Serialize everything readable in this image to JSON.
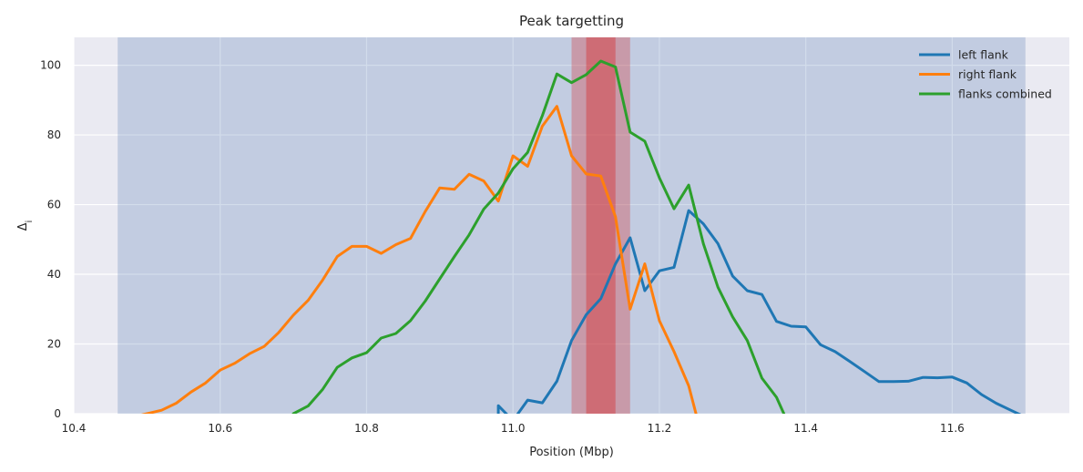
{
  "chart_data": {
    "type": "line",
    "title": "Peak targetting",
    "xlabel": "Position (Mbp)",
    "ylabel": "Δ_i",
    "xlim": [
      10.4,
      11.76
    ],
    "ylim": [
      0,
      108
    ],
    "xticks": [
      10.4,
      10.6,
      10.8,
      11.0,
      11.2,
      11.4,
      11.6
    ],
    "xtick_labels": [
      "10.4",
      "10.6",
      "10.8",
      "11.0",
      "11.2",
      "11.4",
      "11.6"
    ],
    "yticks": [
      0,
      20,
      40,
      60,
      80,
      100
    ],
    "ytick_labels": [
      "0",
      "20",
      "40",
      "60",
      "80",
      "100"
    ],
    "grid": true,
    "legend_position": "upper right",
    "background_color": "#eaeaf2",
    "shaded_regions": [
      {
        "x0": 10.46,
        "x1": 11.7,
        "color": "#4c72b0",
        "opacity": 0.25
      },
      {
        "x0": 11.08,
        "x1": 11.16,
        "color": "#d62728",
        "opacity": 0.3
      },
      {
        "x0": 11.1,
        "x1": 11.14,
        "color": "#d62728",
        "opacity": 0.4
      }
    ],
    "series": [
      {
        "name": "left flank",
        "color": "#1f77b4",
        "points": [
          [
            10.98,
            0
          ],
          [
            10.98,
            2.3
          ],
          [
            11.0,
            -2
          ],
          [
            11.02,
            3.9
          ],
          [
            11.04,
            3.1
          ],
          [
            11.06,
            9.3
          ],
          [
            11.08,
            21
          ],
          [
            11.1,
            28.4
          ],
          [
            11.12,
            33
          ],
          [
            11.14,
            43
          ],
          [
            11.16,
            50.5
          ],
          [
            11.18,
            35.3
          ],
          [
            11.2,
            41
          ],
          [
            11.22,
            42
          ],
          [
            11.24,
            58.3
          ],
          [
            11.26,
            54.5
          ],
          [
            11.28,
            48.8
          ],
          [
            11.3,
            39.5
          ],
          [
            11.32,
            35.3
          ],
          [
            11.34,
            34.2
          ],
          [
            11.36,
            26.5
          ],
          [
            11.38,
            25.1
          ],
          [
            11.4,
            24.9
          ],
          [
            11.42,
            19.8
          ],
          [
            11.44,
            17.8
          ],
          [
            11.46,
            15
          ],
          [
            11.48,
            12.1
          ],
          [
            11.5,
            9.2
          ],
          [
            11.52,
            9.2
          ],
          [
            11.54,
            9.3
          ],
          [
            11.56,
            10.4
          ],
          [
            11.58,
            10.3
          ],
          [
            11.6,
            10.5
          ],
          [
            11.62,
            8.8
          ],
          [
            11.64,
            5.5
          ],
          [
            11.66,
            3
          ],
          [
            11.68,
            1
          ],
          [
            11.7,
            -1
          ]
        ]
      },
      {
        "name": "right flank",
        "color": "#ff7f0e",
        "points": [
          [
            10.49,
            -0.5
          ],
          [
            10.52,
            1
          ],
          [
            10.54,
            3
          ],
          [
            10.56,
            6.2
          ],
          [
            10.58,
            8.8
          ],
          [
            10.6,
            12.5
          ],
          [
            10.62,
            14.5
          ],
          [
            10.64,
            17.2
          ],
          [
            10.66,
            19.3
          ],
          [
            10.68,
            23.3
          ],
          [
            10.7,
            28.3
          ],
          [
            10.72,
            32.5
          ],
          [
            10.74,
            38.4
          ],
          [
            10.76,
            45.1
          ],
          [
            10.78,
            48
          ],
          [
            10.8,
            48
          ],
          [
            10.82,
            46
          ],
          [
            10.84,
            48.5
          ],
          [
            10.86,
            50.3
          ],
          [
            10.88,
            58
          ],
          [
            10.9,
            64.8
          ],
          [
            10.92,
            64.4
          ],
          [
            10.94,
            68.7
          ],
          [
            10.96,
            66.8
          ],
          [
            10.98,
            61
          ],
          [
            11.0,
            74
          ],
          [
            11.02,
            71
          ],
          [
            11.04,
            82.5
          ],
          [
            11.06,
            88.2
          ],
          [
            11.08,
            74
          ],
          [
            11.1,
            68.8
          ],
          [
            11.12,
            68.2
          ],
          [
            11.14,
            56.5
          ],
          [
            11.16,
            30
          ],
          [
            11.18,
            43
          ],
          [
            11.2,
            26.7
          ],
          [
            11.22,
            17.8
          ],
          [
            11.24,
            8
          ],
          [
            11.25,
            0
          ]
        ]
      },
      {
        "name": "flanks combined",
        "color": "#2ca02c",
        "points": [
          [
            10.7,
            0
          ],
          [
            10.72,
            2.2
          ],
          [
            10.74,
            7
          ],
          [
            10.76,
            13.3
          ],
          [
            10.78,
            16
          ],
          [
            10.8,
            17.5
          ],
          [
            10.82,
            21.7
          ],
          [
            10.84,
            23
          ],
          [
            10.86,
            26.7
          ],
          [
            10.88,
            32.3
          ],
          [
            10.9,
            38.7
          ],
          [
            10.92,
            45.1
          ],
          [
            10.94,
            51.3
          ],
          [
            10.96,
            58.7
          ],
          [
            10.98,
            63.3
          ],
          [
            11.0,
            70.3
          ],
          [
            11.02,
            75
          ],
          [
            11.04,
            85.5
          ],
          [
            11.06,
            97.5
          ],
          [
            11.08,
            95
          ],
          [
            11.1,
            97.3
          ],
          [
            11.12,
            101.2
          ],
          [
            11.14,
            99.5
          ],
          [
            11.16,
            80.8
          ],
          [
            11.18,
            78.2
          ],
          [
            11.2,
            67.7
          ],
          [
            11.22,
            58.8
          ],
          [
            11.24,
            65.6
          ],
          [
            11.26,
            48.8
          ],
          [
            11.28,
            36.3
          ],
          [
            11.3,
            27.8
          ],
          [
            11.32,
            21
          ],
          [
            11.34,
            10.2
          ],
          [
            11.36,
            4.7
          ],
          [
            11.37,
            0
          ]
        ]
      }
    ]
  }
}
